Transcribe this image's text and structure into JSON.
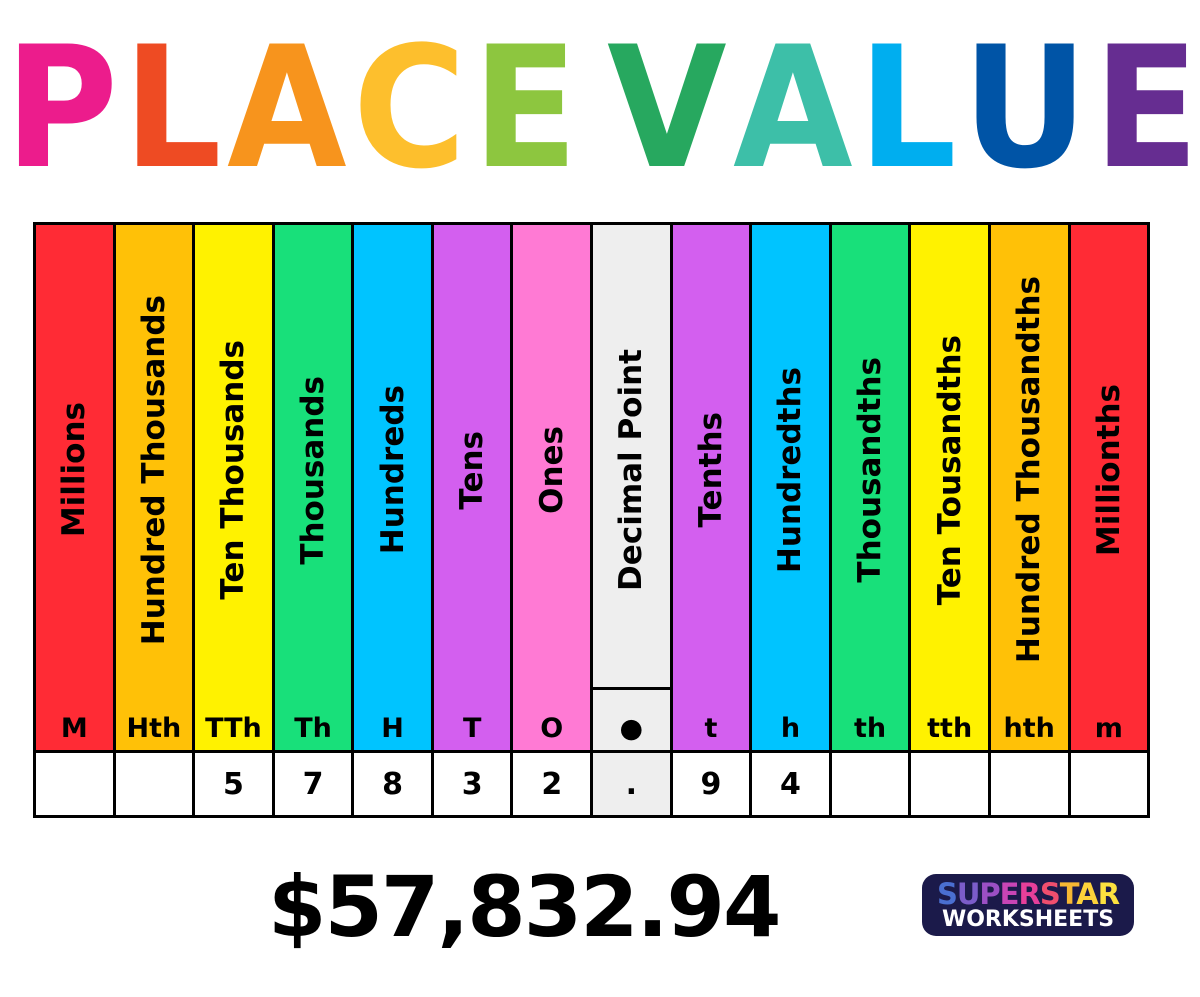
{
  "title": {
    "letters": [
      {
        "char": "P",
        "color": "#ec1c8c"
      },
      {
        "char": "L",
        "color": "#ee4b23"
      },
      {
        "char": "A",
        "color": "#f7941d"
      },
      {
        "char": "C",
        "color": "#fdbf2d"
      },
      {
        "char": "E",
        "color": "#8dc63f"
      },
      {
        "char": " ",
        "color": "#ffffff"
      },
      {
        "char": "V",
        "color": "#27a85f"
      },
      {
        "char": "A",
        "color": "#3dbfa8"
      },
      {
        "char": "L",
        "color": "#00aeef"
      },
      {
        "char": "U",
        "color": "#0054a6"
      },
      {
        "char": "E",
        "color": "#662d91"
      }
    ]
  },
  "columns": [
    {
      "name": "Millions",
      "abbr": "M",
      "digit": "",
      "color": "#ff2b35"
    },
    {
      "name": "Hundred Thousands",
      "abbr": "Hth",
      "digit": "",
      "color": "#ffc107"
    },
    {
      "name": "Ten Thousands",
      "abbr": "TTh",
      "digit": "5",
      "color": "#fff200"
    },
    {
      "name": "Thousands",
      "abbr": "Th",
      "digit": "7",
      "color": "#18e07a"
    },
    {
      "name": "Hundreds",
      "abbr": "H",
      "digit": "8",
      "color": "#00c4ff"
    },
    {
      "name": "Tens",
      "abbr": "T",
      "digit": "3",
      "color": "#d35fef"
    },
    {
      "name": "Ones",
      "abbr": "O",
      "digit": "2",
      "color": "#ff7ad4"
    },
    {
      "name": "Decimal Point",
      "abbr": "●",
      "digit": ".",
      "color": "#eeeeee"
    },
    {
      "name": "Tenths",
      "abbr": "t",
      "digit": "9",
      "color": "#d35fef"
    },
    {
      "name": "Hundredths",
      "abbr": "h",
      "digit": "4",
      "color": "#00c4ff"
    },
    {
      "name": "Thousandths",
      "abbr": "th",
      "digit": "",
      "color": "#18e07a"
    },
    {
      "name": "Ten Tousandths",
      "abbr": "tth",
      "digit": "",
      "color": "#fff200"
    },
    {
      "name": "Hundred Thousandths",
      "abbr": "hth",
      "digit": "",
      "color": "#ffc107"
    },
    {
      "name": "Millionths",
      "abbr": "m",
      "digit": "",
      "color": "#ff2b35"
    }
  ],
  "amount": "$57,832.94",
  "logo": {
    "line1": "SUPERSTAR",
    "line2": "WORKSHEETS",
    "line1_colors": [
      "#4a6fd1",
      "#7b5cc9",
      "#9b4fc4",
      "#c845b5",
      "#e63f9a",
      "#f04e6e",
      "#f7b733",
      "#fcd23a",
      "#fde13f"
    ]
  }
}
